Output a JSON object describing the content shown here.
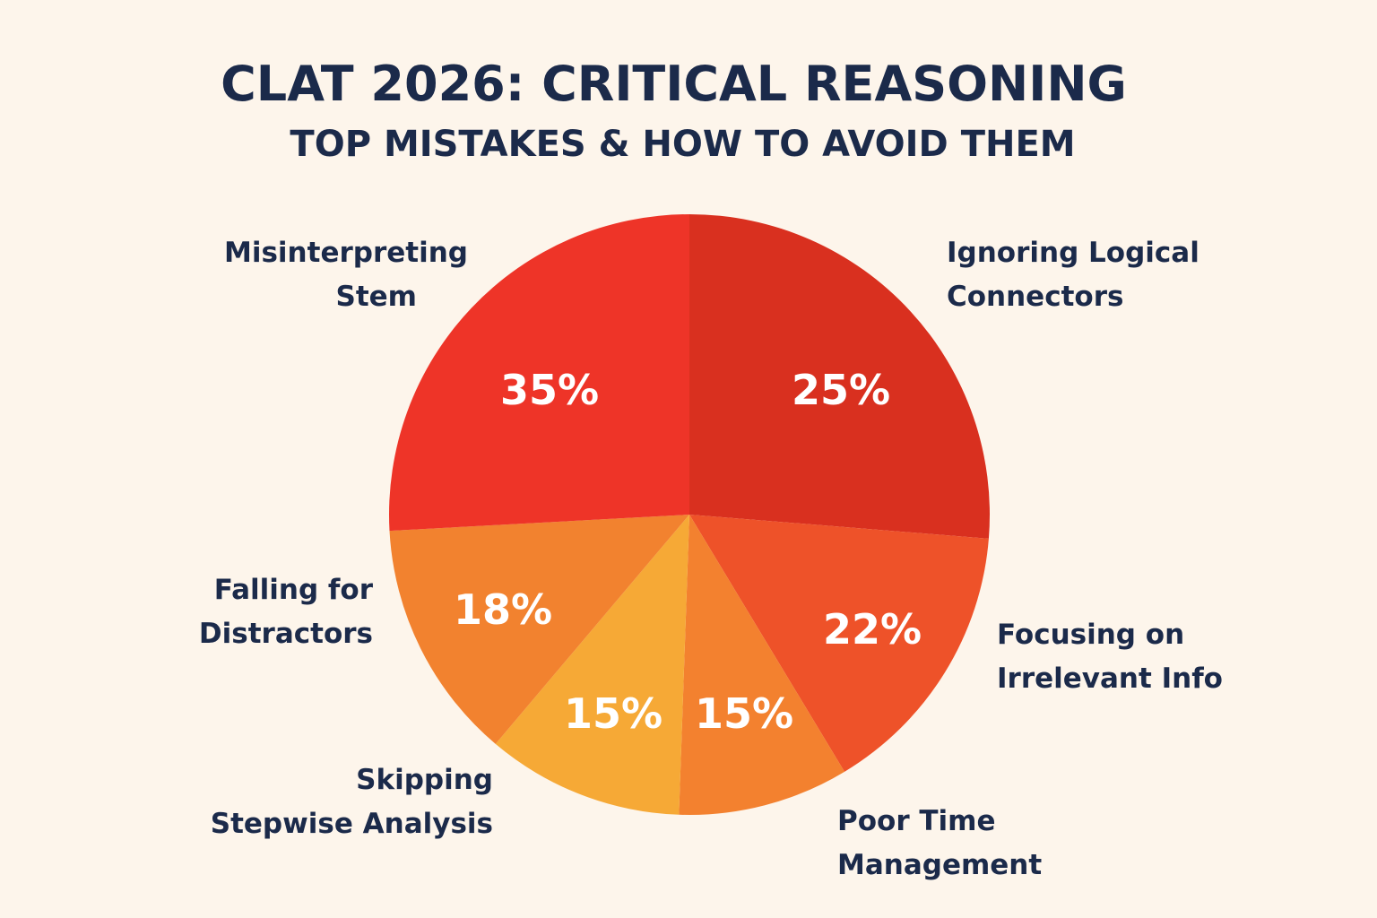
{
  "chart_data": {
    "type": "pie",
    "title": "CLAT 2026: CRITICAL REASONING",
    "subtitle": "TOP MISTAKES & HOW TO AVOID THEM",
    "slices": [
      {
        "label": "Ignoring Logical Connectors",
        "value": 25,
        "value_label": "25%",
        "color": "#D9301F"
      },
      {
        "label": "Focusing on Irrelevant Info",
        "value": 22,
        "value_label": "22%",
        "color": "#EE5229"
      },
      {
        "label": "Poor Time Management",
        "value": 15,
        "value_label": "15%",
        "color": "#F3812F"
      },
      {
        "label": "Skipping Stepwise Analysis",
        "value": 15,
        "value_label": "15%",
        "color": "#F6A936"
      },
      {
        "label": "Falling for Distractors",
        "value": 18,
        "value_label": "18%",
        "color": "#F2822F"
      },
      {
        "label": "Misinterpreting Stem",
        "value": 35,
        "value_label": "35%",
        "color": "#EE3428"
      }
    ]
  }
}
